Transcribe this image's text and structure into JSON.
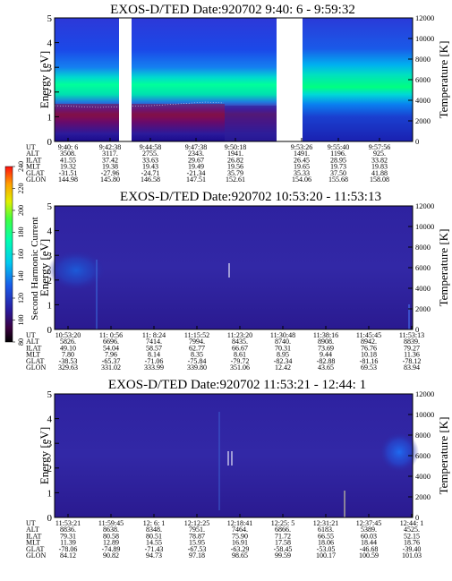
{
  "chart_data": [
    {
      "type": "heatmap",
      "title": "EXOS-D/TED   Date:920702  9:40: 6 - 9:59:32",
      "ylabel": "Energy [eV]",
      "y2label": "Temperature [K]",
      "ylim": [
        0,
        5
      ],
      "yticks": [
        0,
        1,
        2,
        3,
        4,
        5
      ],
      "y2lim": [
        0,
        12000
      ],
      "y2ticks": [
        0,
        2000,
        4000,
        6000,
        8000,
        10000,
        12000
      ],
      "data_gaps": [
        [
          0.53,
          0.07
        ],
        [
          2.33,
          0.37
        ]
      ],
      "orbit_rows": [
        "UT",
        "ALT",
        "ILAT",
        "MLT",
        "GLAT",
        "GLON"
      ],
      "orbit_columns": [
        [
          "9:40: 6",
          "3508.",
          "41.55",
          "19.32",
          "-31.51",
          "144.98"
        ],
        [
          "9:42:38",
          "3117.",
          "37.42",
          "19.38",
          "-27.96",
          "145.80"
        ],
        [
          "9:44:58",
          "2755.",
          "33.63",
          "19.43",
          "-24.71",
          "146.58"
        ],
        [
          "9:47:38",
          "2343.",
          "29.67",
          "19.49",
          "-21.34",
          "147.51"
        ],
        [
          "9:50:18",
          "1941.",
          "26.82",
          "19.56",
          "35.79",
          "152.61"
        ],
        [
          "9:53:26",
          "1491.",
          "26.45",
          "19.65",
          "35.33",
          "154.06"
        ],
        [
          "9:55:40",
          "1196.",
          "28.95",
          "19.73",
          "37.50",
          "155.68"
        ],
        [
          "9:57:56",
          "925.",
          "33.82",
          "19.83",
          "41.88",
          "158.08"
        ]
      ]
    },
    {
      "type": "heatmap",
      "title": "EXOS-D/TED   Date:920702  10:53:20 - 11:53:13",
      "ylabel": "Energy [eV]",
      "y2label": "Temperature [K]",
      "ylim": [
        0,
        5
      ],
      "yticks": [
        0,
        1,
        2,
        3,
        4,
        5
      ],
      "y2lim": [
        0,
        12000
      ],
      "y2ticks": [
        0,
        2000,
        4000,
        6000,
        8000,
        10000,
        12000
      ],
      "colorbar": {
        "label": "Second Harmonic Current",
        "range": [
          80,
          240
        ],
        "ticks": [
          80,
          100,
          120,
          140,
          160,
          180,
          200,
          220,
          240
        ]
      },
      "orbit_rows": [
        "UT",
        "ALT",
        "ILAT",
        "MLT",
        "GLAT",
        "GLON"
      ],
      "orbit_columns": [
        [
          "10:53:20",
          "5826.",
          "49.10",
          "7.80",
          "-38.53",
          "329.63"
        ],
        [
          "11: 0:56",
          "6696.",
          "54.04",
          "7.96",
          "-65.37",
          "331.02"
        ],
        [
          "11: 8:24",
          "7414.",
          "58.57",
          "8.14",
          "-71.06",
          "333.99"
        ],
        [
          "11:15:52",
          "7994.",
          "62.77",
          "8.35",
          "-75.84",
          "339.80"
        ],
        [
          "11:23:20",
          "8435.",
          "66.67",
          "8.61",
          "-79.72",
          "351.06"
        ],
        [
          "11:30:48",
          "8740.",
          "70.31",
          "8.95",
          "-82.34",
          "12.42"
        ],
        [
          "11:38:16",
          "8908.",
          "73.69",
          "9.44",
          "-82.88",
          "43.65"
        ],
        [
          "11:45:45",
          "8942.",
          "76.76",
          "10.18",
          "-81.16",
          "69.53"
        ],
        [
          "11:53:13",
          "8839.",
          "79.27",
          "11.36",
          "-78.12",
          "83.94"
        ]
      ]
    },
    {
      "type": "heatmap",
      "title": "EXOS-D/TED   Date:920702  11:53:21 - 12:44: 1",
      "ylabel": "Energy [eV]",
      "y2label": "Temperature [K]",
      "ylim": [
        0,
        5
      ],
      "yticks": [
        0,
        1,
        2,
        3,
        4,
        5
      ],
      "y2lim": [
        0,
        12000
      ],
      "y2ticks": [
        0,
        2000,
        4000,
        6000,
        8000,
        10000,
        12000
      ],
      "orbit_rows": [
        "UT",
        "ALT",
        "ILAT",
        "MLT",
        "GLAT",
        "GLON"
      ],
      "orbit_columns": [
        [
          "11:53:21",
          "8836.",
          "79.31",
          "11.39",
          "-78.06",
          "84.12"
        ],
        [
          "11:59:45",
          "8638.",
          "80.58",
          "12.89",
          "-74.89",
          "90.82"
        ],
        [
          "12: 6: 1",
          "8348.",
          "80.51",
          "14.55",
          "-71.43",
          "94.73"
        ],
        [
          "12:12:25",
          "7951.",
          "78.87",
          "15.95",
          "-67.53",
          "97.18"
        ],
        [
          "12:18:41",
          "7464.",
          "75.90",
          "16.91",
          "-63.29",
          "98.65"
        ],
        [
          "12:25: 5",
          "6866.",
          "71.72",
          "17.58",
          "-58.45",
          "99.59"
        ],
        [
          "12:31:21",
          "6183.",
          "66.55",
          "18.06",
          "-53.05",
          "100.17"
        ],
        [
          "12:37:45",
          "5389.",
          "60.03",
          "18.44",
          "-46.68",
          "100.59"
        ],
        [
          "12:44: 1",
          "4525.",
          "52.15",
          "18.76",
          "-39.40",
          "101.03"
        ]
      ]
    }
  ]
}
